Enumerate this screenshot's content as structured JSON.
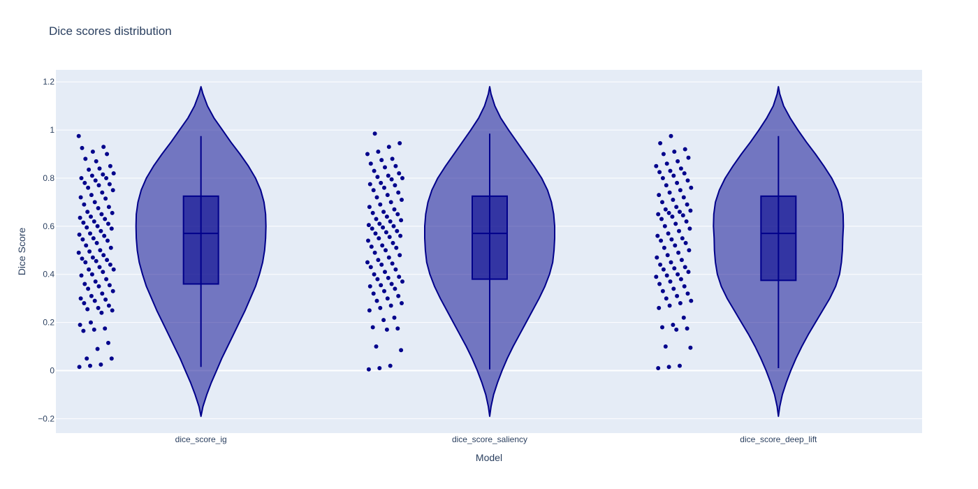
{
  "chart_data": {
    "type": "violin",
    "title": "Dice scores distribution",
    "xlabel": "Model",
    "ylabel": "Dice Score",
    "ylim": [
      -0.26,
      1.25
    ],
    "yticks": [
      -0.2,
      0,
      0.2,
      0.4,
      0.6,
      0.8,
      1,
      1.2
    ],
    "ytick_labels": [
      "−0.2",
      "0",
      "0.2",
      "0.4",
      "0.6",
      "0.8",
      "1",
      "1.2"
    ],
    "grid": true,
    "colors": {
      "plot_bg": "#e5ecf6",
      "fill": "#00008b",
      "fill_opacity": 0.5,
      "line": "#00008b",
      "grid": "#ffffff"
    },
    "categories": [
      "dice_score_ig",
      "dice_score_saliency",
      "dice_score_deep_lift"
    ],
    "series": [
      {
        "name": "dice_score_ig",
        "box": {
          "min": 0.015,
          "q1": 0.36,
          "median": 0.57,
          "q3": 0.725,
          "max": 0.975
        },
        "kde_range": [
          -0.19,
          1.18
        ],
        "density": [
          [
            -0.19,
            0.0
          ],
          [
            -0.15,
            0.03
          ],
          [
            -0.1,
            0.09
          ],
          [
            -0.05,
            0.16
          ],
          [
            0.0,
            0.24
          ],
          [
            0.05,
            0.32
          ],
          [
            0.1,
            0.41
          ],
          [
            0.15,
            0.5
          ],
          [
            0.2,
            0.59
          ],
          [
            0.25,
            0.68
          ],
          [
            0.3,
            0.76
          ],
          [
            0.35,
            0.84
          ],
          [
            0.4,
            0.9
          ],
          [
            0.45,
            0.95
          ],
          [
            0.5,
            0.98
          ],
          [
            0.55,
            0.995
          ],
          [
            0.6,
            1.0
          ],
          [
            0.65,
            0.995
          ],
          [
            0.7,
            0.97
          ],
          [
            0.75,
            0.92
          ],
          [
            0.8,
            0.84
          ],
          [
            0.85,
            0.73
          ],
          [
            0.9,
            0.6
          ],
          [
            0.95,
            0.46
          ],
          [
            1.0,
            0.33
          ],
          [
            1.05,
            0.2
          ],
          [
            1.1,
            0.1
          ],
          [
            1.15,
            0.03
          ],
          [
            1.18,
            0.0
          ]
        ],
        "points": [
          0.975,
          0.93,
          0.91,
          0.925,
          0.9,
          0.87,
          0.88,
          0.85,
          0.84,
          0.835,
          0.82,
          0.815,
          0.81,
          0.8,
          0.8,
          0.79,
          0.78,
          0.775,
          0.77,
          0.76,
          0.75,
          0.74,
          0.73,
          0.72,
          0.715,
          0.7,
          0.69,
          0.68,
          0.675,
          0.66,
          0.655,
          0.65,
          0.64,
          0.635,
          0.63,
          0.62,
          0.615,
          0.61,
          0.6,
          0.595,
          0.59,
          0.58,
          0.57,
          0.565,
          0.56,
          0.55,
          0.545,
          0.54,
          0.53,
          0.52,
          0.51,
          0.5,
          0.495,
          0.49,
          0.48,
          0.47,
          0.465,
          0.46,
          0.455,
          0.45,
          0.44,
          0.43,
          0.42,
          0.42,
          0.41,
          0.4,
          0.395,
          0.38,
          0.37,
          0.36,
          0.355,
          0.35,
          0.34,
          0.33,
          0.32,
          0.31,
          0.3,
          0.295,
          0.29,
          0.28,
          0.27,
          0.26,
          0.255,
          0.25,
          0.24,
          0.2,
          0.19,
          0.175,
          0.17,
          0.165,
          0.115,
          0.09,
          0.05,
          0.05,
          0.025,
          0.02,
          0.015
        ]
      },
      {
        "name": "dice_score_saliency",
        "box": {
          "min": 0.005,
          "q1": 0.38,
          "median": 0.57,
          "q3": 0.725,
          "max": 0.985
        },
        "kde_range": [
          -0.19,
          1.18
        ],
        "density": [
          [
            -0.19,
            0.0
          ],
          [
            -0.15,
            0.02
          ],
          [
            -0.1,
            0.06
          ],
          [
            -0.05,
            0.12
          ],
          [
            0.0,
            0.19
          ],
          [
            0.05,
            0.27
          ],
          [
            0.1,
            0.36
          ],
          [
            0.15,
            0.46
          ],
          [
            0.2,
            0.56
          ],
          [
            0.25,
            0.66
          ],
          [
            0.3,
            0.76
          ],
          [
            0.35,
            0.85
          ],
          [
            0.4,
            0.92
          ],
          [
            0.45,
            0.97
          ],
          [
            0.5,
            0.99
          ],
          [
            0.55,
            1.0
          ],
          [
            0.6,
            1.0
          ],
          [
            0.65,
            0.985
          ],
          [
            0.7,
            0.95
          ],
          [
            0.75,
            0.89
          ],
          [
            0.8,
            0.8
          ],
          [
            0.85,
            0.68
          ],
          [
            0.9,
            0.55
          ],
          [
            0.95,
            0.42
          ],
          [
            1.0,
            0.29
          ],
          [
            1.05,
            0.17
          ],
          [
            1.1,
            0.08
          ],
          [
            1.15,
            0.02
          ],
          [
            1.18,
            0.0
          ]
        ],
        "points": [
          0.985,
          0.945,
          0.93,
          0.91,
          0.9,
          0.88,
          0.875,
          0.86,
          0.85,
          0.845,
          0.83,
          0.82,
          0.81,
          0.805,
          0.8,
          0.795,
          0.78,
          0.775,
          0.77,
          0.76,
          0.75,
          0.74,
          0.73,
          0.72,
          0.71,
          0.7,
          0.69,
          0.68,
          0.67,
          0.66,
          0.655,
          0.65,
          0.64,
          0.63,
          0.625,
          0.62,
          0.61,
          0.605,
          0.6,
          0.595,
          0.59,
          0.58,
          0.575,
          0.57,
          0.56,
          0.555,
          0.55,
          0.54,
          0.53,
          0.52,
          0.515,
          0.51,
          0.5,
          0.49,
          0.48,
          0.47,
          0.46,
          0.45,
          0.445,
          0.44,
          0.43,
          0.42,
          0.41,
          0.4,
          0.39,
          0.385,
          0.38,
          0.37,
          0.36,
          0.355,
          0.35,
          0.34,
          0.33,
          0.32,
          0.31,
          0.3,
          0.29,
          0.28,
          0.27,
          0.26,
          0.25,
          0.22,
          0.21,
          0.18,
          0.175,
          0.17,
          0.1,
          0.085,
          0.02,
          0.01,
          0.005
        ]
      },
      {
        "name": "dice_score_deep_lift",
        "box": {
          "min": 0.01,
          "q1": 0.375,
          "median": 0.57,
          "q3": 0.725,
          "max": 0.975
        },
        "kde_range": [
          -0.19,
          1.18
        ],
        "density": [
          [
            -0.19,
            0.0
          ],
          [
            -0.15,
            0.02
          ],
          [
            -0.1,
            0.06
          ],
          [
            -0.05,
            0.12
          ],
          [
            0.0,
            0.19
          ],
          [
            0.05,
            0.27
          ],
          [
            0.1,
            0.36
          ],
          [
            0.15,
            0.46
          ],
          [
            0.2,
            0.57
          ],
          [
            0.25,
            0.68
          ],
          [
            0.3,
            0.79
          ],
          [
            0.35,
            0.88
          ],
          [
            0.4,
            0.94
          ],
          [
            0.45,
            0.97
          ],
          [
            0.5,
            0.985
          ],
          [
            0.55,
            0.99
          ],
          [
            0.6,
            1.0
          ],
          [
            0.65,
            0.995
          ],
          [
            0.7,
            0.97
          ],
          [
            0.75,
            0.91
          ],
          [
            0.8,
            0.82
          ],
          [
            0.85,
            0.7
          ],
          [
            0.9,
            0.57
          ],
          [
            0.95,
            0.43
          ],
          [
            1.0,
            0.3
          ],
          [
            1.05,
            0.18
          ],
          [
            1.1,
            0.08
          ],
          [
            1.15,
            0.02
          ],
          [
            1.18,
            0.0
          ]
        ],
        "points": [
          0.975,
          0.945,
          0.92,
          0.91,
          0.9,
          0.885,
          0.87,
          0.86,
          0.85,
          0.84,
          0.83,
          0.825,
          0.82,
          0.81,
          0.8,
          0.79,
          0.78,
          0.77,
          0.76,
          0.75,
          0.74,
          0.73,
          0.72,
          0.71,
          0.7,
          0.69,
          0.68,
          0.67,
          0.665,
          0.66,
          0.655,
          0.65,
          0.645,
          0.64,
          0.63,
          0.62,
          0.61,
          0.6,
          0.59,
          0.58,
          0.57,
          0.56,
          0.55,
          0.545,
          0.54,
          0.53,
          0.52,
          0.51,
          0.5,
          0.49,
          0.48,
          0.47,
          0.46,
          0.45,
          0.44,
          0.43,
          0.425,
          0.42,
          0.41,
          0.4,
          0.395,
          0.39,
          0.38,
          0.37,
          0.36,
          0.35,
          0.34,
          0.33,
          0.32,
          0.31,
          0.3,
          0.29,
          0.28,
          0.27,
          0.26,
          0.22,
          0.19,
          0.18,
          0.175,
          0.17,
          0.1,
          0.095,
          0.02,
          0.015,
          0.01
        ]
      }
    ]
  }
}
